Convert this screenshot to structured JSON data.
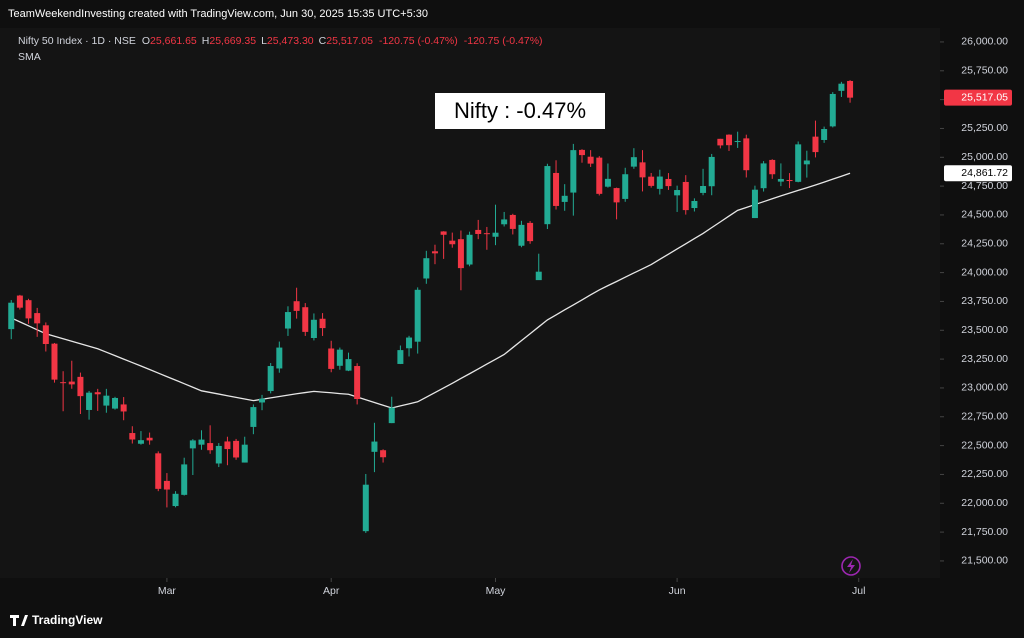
{
  "header": {
    "caption": "TeamWeekendInvesting created with TradingView.com, Jun 30, 2025 15:35 UTC+5:30"
  },
  "chart_data": {
    "type": "candlestick",
    "title": "Nifty 50 Index · 1D · NSE",
    "ohlc_text": [
      {
        "key": "O",
        "value": "25,661.65"
      },
      {
        "key": "H",
        "value": "25,669.35"
      },
      {
        "key": "L",
        "value": "25,473.30"
      },
      {
        "key": "C",
        "value": "25,517.05"
      }
    ],
    "change_text": [
      "-120.75 (-0.47%)",
      "-120.75 (-0.47%)"
    ],
    "up_color": "#22ab94",
    "down_color": "#f23645",
    "open": [
      23510,
      23801,
      23761,
      23649,
      23543,
      23384,
      23050,
      23055,
      23096,
      22809,
      22963,
      22847,
      22821,
      22857,
      22609,
      22516,
      22568,
      22433,
      22194,
      21976,
      22073,
      22476,
      22508,
      22522,
      22345,
      22536,
      22541,
      22353,
      22662,
      22874,
      22973,
      23169,
      23515,
      23752,
      23700,
      23433,
      23600,
      23342,
      23192,
      23150,
      23190,
      21758,
      22446,
      22460,
      22695,
      23208,
      23344,
      23401,
      23949,
      24185,
      24357,
      24277,
      24290,
      24070,
      24370,
      24342,
      24311,
      24419,
      24500,
      24233,
      24431,
      23935,
      24420,
      24864,
      24613,
      24694,
      25064,
      25005,
      24997,
      24745,
      24733,
      24639,
      24919,
      24956,
      24832,
      24726,
      24812,
      24670,
      24786,
      24560,
      24691,
      24749,
      25160,
      25196,
      25134,
      25164,
      24473,
      24732,
      24977,
      24789,
      24803,
      24787,
      24939,
      25179,
      25150,
      25268,
      25576,
      25661.65
    ],
    "high": [
      23762,
      23807,
      23773,
      23694,
      23568,
      23390,
      23145,
      23236,
      23133,
      22974,
      22992,
      22992,
      22923,
      22921,
      22668,
      22626,
      22613,
      22450,
      22262,
      22105,
      22395,
      22556,
      22633,
      22676,
      22522,
      22577,
      22558,
      22577,
      22857,
      22940,
      23216,
      23402,
      23708,
      23869,
      23736,
      23646,
      23649,
      23409,
      23350,
      23306,
      23214,
      22254,
      22698,
      22468,
      22924,
      23368,
      23452,
      23872,
      24189,
      24242,
      24359,
      24347,
      24365,
      24355,
      24457,
      24396,
      24589,
      24526,
      24510,
      24449,
      24447,
      24164,
      24944,
      24974,
      24767,
      25116,
      25070,
      25062,
      25010,
      24946,
      24737,
      24909,
      25079,
      25062,
      24864,
      24892,
      24863,
      24754,
      24845,
      24644,
      24900,
      25029,
      25160,
      25199,
      25222,
      25196,
      24754,
      24967,
      24983,
      24947,
      24863,
      25137,
      25057,
      25318,
      25266,
      25565,
      25654,
      25669.35
    ],
    "low": [
      23423,
      23680,
      23556,
      23443,
      23316,
      23046,
      22798,
      22993,
      22774,
      22725,
      22801,
      22785,
      22812,
      22720,
      22518,
      22508,
      22508,
      22105,
      21964,
      21965,
      22067,
      22245,
      22464,
      22429,
      22314,
      22330,
      22377,
      22353,
      22599,
      22807,
      22953,
      23132,
      23451,
      23601,
      23451,
      23412,
      23451,
      23136,
      23158,
      23146,
      22857,
      21743,
      22270,
      22353,
      22695,
      23207,
      23273,
      23298,
      23903,
      24073,
      24119,
      24216,
      23847,
      24055,
      24290,
      24198,
      24238,
      24400,
      24331,
      24220,
      24250,
      23936,
      24378,
      24547,
      24536,
      24494,
      24953,
      24916,
      24669,
      24737,
      24462,
      24614,
      24900,
      24704,
      24737,
      24677,
      24717,
      24526,
      24503,
      24530,
      24671,
      24671,
      25077,
      25055,
      25081,
      24825,
      24473,
      24703,
      24813,
      24750,
      24733,
      24783,
      24824,
      24999,
      25125,
      25259,
      25523,
      25473.3
    ],
    "close": [
      23739,
      23696,
      23603,
      23560,
      23381,
      23072,
      23045,
      23031,
      22929,
      22959,
      22945,
      22933,
      22913,
      22796,
      22553,
      22547,
      22545,
      22125,
      22119,
      22082,
      22337,
      22545,
      22552,
      22460,
      22497,
      22470,
      22397,
      22508,
      22834,
      22907,
      23190,
      23350,
      23658,
      23668,
      23486,
      23591,
      23519,
      23165,
      23332,
      23250,
      22904,
      22161,
      22535,
      22399,
      22829,
      23328,
      23437,
      23851,
      24125,
      24167,
      24328,
      24246,
      24039,
      24328,
      24335,
      24334,
      24346,
      24461,
      24379,
      24414,
      24273,
      24008,
      24924,
      24578,
      24666,
      25062,
      25019,
      24945,
      24683,
      24813,
      24609,
      24853,
      25001,
      24826,
      24752,
      24833,
      24750,
      24716,
      24542,
      24621,
      24751,
      25003,
      25103,
      25105,
      25141,
      24888,
      24719,
      24947,
      24853,
      24812,
      24794,
      25112,
      24972,
      25045,
      25245,
      25549,
      25638,
      25517.05
    ],
    "sma": {
      "name": "SMA",
      "color": "#e6e6e6",
      "values": [
        23607,
        23573,
        23539,
        23504,
        23470,
        23448,
        23427,
        23405,
        23383,
        23362,
        23340,
        23310,
        23280,
        23250,
        23220,
        23190,
        23160,
        23129,
        23098,
        23068,
        23037,
        23006,
        22975,
        22961,
        22947,
        22932,
        22918,
        22904,
        22890,
        22902,
        22914,
        22926,
        22938,
        22950,
        22960,
        22970,
        22964,
        22958,
        22951,
        22945,
        22921,
        22898,
        22874,
        22850,
        22826,
        22844,
        22862,
        22880,
        22920,
        22960,
        23000,
        23040,
        23082,
        23123,
        23165,
        23207,
        23248,
        23290,
        23350,
        23410,
        23470,
        23530,
        23590,
        23633,
        23677,
        23720,
        23763,
        23807,
        23850,
        23887,
        23923,
        23960,
        23997,
        24033,
        24070,
        24115,
        24160,
        24205,
        24250,
        24295,
        24340,
        24390,
        24440,
        24490,
        24540,
        24565,
        24590,
        24615,
        24640,
        24665,
        24689,
        24713,
        24736,
        24760,
        24785,
        24811,
        24836,
        24861.72
      ]
    },
    "xlim": [
      -1.3,
      107.4
    ],
    "xticks": [
      {
        "value": 18,
        "label": "Mar"
      },
      {
        "value": 37,
        "label": "Apr"
      },
      {
        "value": 56,
        "label": "May"
      },
      {
        "value": 77,
        "label": "Jun"
      },
      {
        "value": 98,
        "label": "Jul"
      }
    ],
    "ylim": [
      21352,
      26121
    ],
    "yticks": [
      {
        "value": 21500,
        "label": "21,500.00"
      },
      {
        "value": 21750,
        "label": "21,750.00"
      },
      {
        "value": 22000,
        "label": "22,000.00"
      },
      {
        "value": 22250,
        "label": "22,250.00"
      },
      {
        "value": 22500,
        "label": "22,500.00"
      },
      {
        "value": 22750,
        "label": "22,750.00"
      },
      {
        "value": 23000,
        "label": "23,000.00"
      },
      {
        "value": 23250,
        "label": "23,250.00"
      },
      {
        "value": 23500,
        "label": "23,500.00"
      },
      {
        "value": 23750,
        "label": "23,750.00"
      },
      {
        "value": 24000,
        "label": "24,000.00"
      },
      {
        "value": 24250,
        "label": "24,250.00"
      },
      {
        "value": 24500,
        "label": "24,500.00"
      },
      {
        "value": 24750,
        "label": "24,750.00"
      },
      {
        "value": 25000,
        "label": "25,000.00"
      },
      {
        "value": 25250,
        "label": "25,250.00"
      },
      {
        "value": 25500,
        "label": "25,500.00"
      },
      {
        "value": 25750,
        "label": "25,750.00"
      },
      {
        "value": 26000,
        "label": "26,000.00"
      }
    ],
    "grid": false,
    "price_tags": [
      {
        "value": 25517.05,
        "label": "25,517.05",
        "color": "#f23645",
        "text_color": "#ffffff"
      },
      {
        "value": 24861.72,
        "label": "24,861.72",
        "color": "#ffffff",
        "text_color": "#000000"
      }
    ],
    "annotation": "Nifty : -0.47%"
  },
  "footer": {
    "brand": "TradingView"
  }
}
